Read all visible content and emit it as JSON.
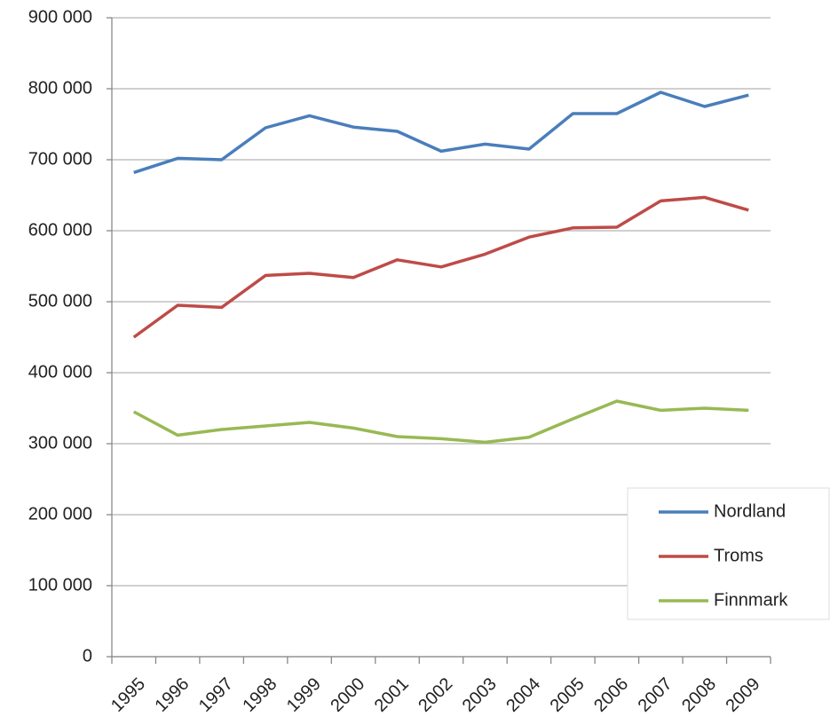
{
  "chart_data": {
    "type": "line",
    "categories": [
      "1995",
      "1996",
      "1997",
      "1998",
      "1999",
      "2000",
      "2001",
      "2002",
      "2003",
      "2004",
      "2005",
      "2006",
      "2007",
      "2008",
      "2009"
    ],
    "series": [
      {
        "name": "Nordland",
        "color": "#4a7ebb",
        "values": [
          682000,
          702000,
          700000,
          745000,
          762000,
          746000,
          740000,
          712000,
          722000,
          715000,
          765000,
          765000,
          795000,
          775000,
          791000
        ]
      },
      {
        "name": "Troms",
        "color": "#be4b48",
        "values": [
          450000,
          495000,
          492000,
          537000,
          540000,
          534000,
          559000,
          549000,
          567000,
          591000,
          604000,
          605000,
          642000,
          647000,
          629000
        ]
      },
      {
        "name": "Finnmark",
        "color": "#98b954",
        "values": [
          345000,
          312000,
          320000,
          325000,
          330000,
          322000,
          310000,
          307000,
          302000,
          309000,
          335000,
          360000,
          347000,
          350000,
          347000
        ]
      }
    ],
    "ylim": [
      0,
      900000
    ],
    "yticks": [
      0,
      {
        "value": 100000,
        "label": "100 000"
      },
      {
        "value": 200000,
        "label": "200 000"
      },
      {
        "value": 300000,
        "label": "300 000"
      },
      {
        "value": 400000,
        "label": "400 000"
      },
      {
        "value": 500000,
        "label": "500 000"
      },
      {
        "value": 600000,
        "label": "600 000"
      },
      {
        "value": 700000,
        "label": "700 000"
      },
      {
        "value": 800000,
        "label": "800 000"
      },
      {
        "value": 900000,
        "label": "900 000"
      }
    ],
    "grid": true,
    "legend": "right"
  }
}
